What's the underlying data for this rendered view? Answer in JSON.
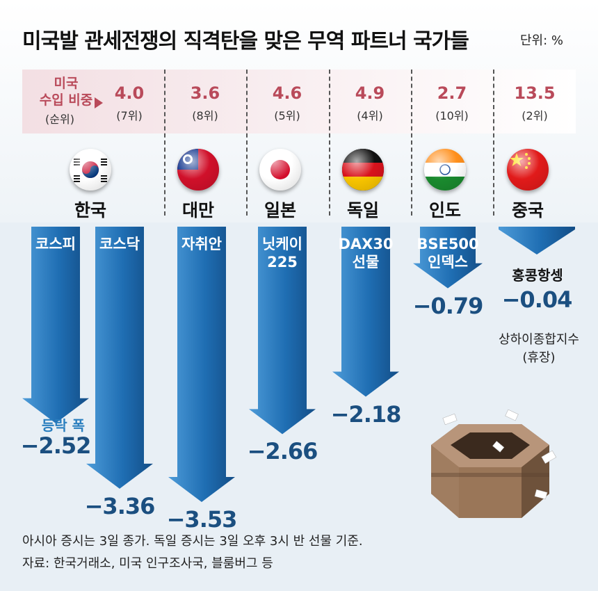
{
  "title": "미국발 관세전쟁의 직격탄을 맞은 무역 파트너 국가들",
  "unit": "단위: %",
  "share_label_line1": "미국",
  "share_label_line2": "수입 비중",
  "share_label_sub": "(순위)",
  "fluctuation_label": "등락 폭",
  "countries": [
    {
      "name": "한국",
      "share": "4.0",
      "rank": "(7위)",
      "flag": "korea-flag-icon"
    },
    {
      "name": "대만",
      "share": "3.6",
      "rank": "(8위)",
      "flag": "taiwan-flag-icon"
    },
    {
      "name": "일본",
      "share": "4.6",
      "rank": "(5위)",
      "flag": "japan-flag-icon"
    },
    {
      "name": "독일",
      "share": "4.9",
      "rank": "(4위)",
      "flag": "germany-flag-icon"
    },
    {
      "name": "인도",
      "share": "2.7",
      "rank": "(10위)",
      "flag": "india-flag-icon"
    },
    {
      "name": "중국",
      "share": "13.5",
      "rank": "(2위)",
      "flag": "china-flag-icon"
    }
  ],
  "chart_data": {
    "type": "bar",
    "categories": [
      "코스피",
      "코스닥",
      "자취안",
      "닛케이 225",
      "DAX30 선물",
      "BSE500 인덱스",
      "홍콩항셍"
    ],
    "values": [
      -2.52,
      -3.36,
      -3.53,
      -2.66,
      -2.18,
      -0.79,
      -0.04
    ],
    "value_labels": [
      "−2.52",
      "−3.36",
      "−3.53",
      "−2.66",
      "−2.18",
      "−0.79",
      "−0.04"
    ],
    "ylim": [
      -3.53,
      0
    ],
    "ylabel": "등락 폭",
    "unit": "%",
    "color": "#1f6eb3"
  },
  "index_labels": [
    [
      "코스피"
    ],
    [
      "코스닥"
    ],
    [
      "자취안"
    ],
    [
      "닛케이",
      "225"
    ],
    [
      "DAX30",
      "선물"
    ],
    [
      "BSE500",
      "인덱스"
    ],
    []
  ],
  "hk_name": "홍콩항셍",
  "shanghai_note_line1": "상하이종합지수",
  "shanghai_note_line2": "(휴장)",
  "footnote_1": "아시아 증시는 3일 종가. 독일 증시는 3일 오후 3시 반 선물 기준.",
  "footnote_2": "자료: 한국거래소, 미국 인구조사국, 블룸버그 등"
}
